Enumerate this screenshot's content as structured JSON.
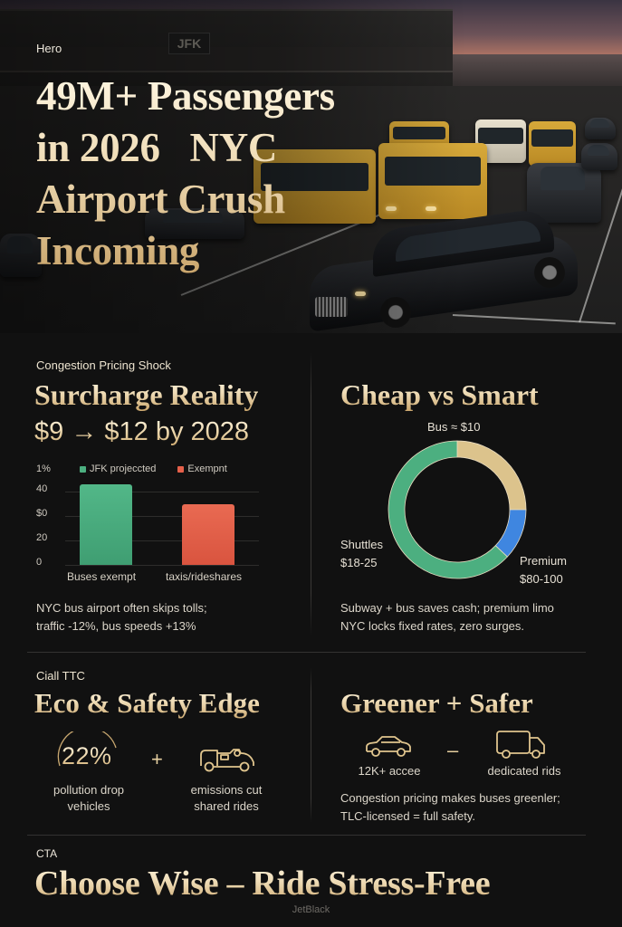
{
  "hero": {
    "label": "Hero",
    "title_lines": [
      "49M+ Passengers",
      "in 2026   NYC",
      "Airport Crush",
      "Incoming"
    ],
    "sign_text": "JFK",
    "image_alt": "Evening traffic at JFK airport with yellow buses and a black limousine"
  },
  "congestion": {
    "kicker": "Congestion Pricing Shock",
    "title": "Surcharge Reality",
    "subtitle": "$9 → $12 by 2028",
    "body_lines": [
      "NYC bus airport often skips tolls;",
      "traffic -12%, bus speeds +13%"
    ]
  },
  "comparison": {
    "title": "Cheap vs Smart",
    "body_lines": [
      "Subway + bus saves cash; premium limo",
      "NYC locks fixed rates, zero surges."
    ]
  },
  "eco": {
    "kicker": "Ciall TTC",
    "title": "Eco & Safety Edge",
    "stat_value": "22%",
    "stat_caption_lines": [
      "pollution drop",
      "vehicles"
    ],
    "operator": "+",
    "icon_caption_lines": [
      "emissions cut",
      "shared rides"
    ]
  },
  "greener": {
    "title": "Greener + Safer",
    "car_caption": "12K+ accee",
    "operator": "–",
    "truck_caption": "dedicated rids",
    "body_lines": [
      "Congestion pricing makes buses greenler;",
      "TLC-licensed = full safety."
    ]
  },
  "cta": {
    "label": "CTA",
    "title": "Choose Wise – Ride Stress-Free",
    "brand": "JetBlack"
  },
  "icons": {
    "stat_arc": "arc-gauge-icon",
    "truck_line": "delivery-truck-icon",
    "car_line": "car-icon",
    "van_line": "box-truck-icon"
  },
  "colors": {
    "background": "#111111",
    "gold_light": "#fff6e2",
    "gold_dark": "#c9a46a",
    "green": "#4caf80",
    "red": "#e5604a",
    "blue": "#3f86e0",
    "beige": "#dcc38c",
    "divider": "#333231"
  },
  "chart_data": [
    {
      "type": "bar",
      "title": "",
      "ylabel": "1%",
      "xlabel": "",
      "categories": [
        "Buses exempt",
        "taxis/rideshares"
      ],
      "legend": [
        "JFK projeccted",
        "Exempnt"
      ],
      "series": [
        {
          "name": "JFK projeccted",
          "color": "#4caf80",
          "values": [
            44,
            null
          ]
        },
        {
          "name": "Exempnt",
          "color": "#e5604a",
          "values": [
            null,
            33
          ]
        }
      ],
      "values": [
        44,
        33
      ],
      "yticks": [
        "0",
        "20",
        "$0",
        "40"
      ],
      "ylim": [
        0,
        50
      ],
      "grid": true,
      "legend_position": "top"
    },
    {
      "type": "pie",
      "style": "donut",
      "title": "Cheap vs Smart",
      "slices": [
        {
          "label": "Bus ≈ $10",
          "value": 25,
          "color": "#dcc38c"
        },
        {
          "label": "Premium $80-100",
          "value": 12,
          "color": "#3f86e0"
        },
        {
          "label": "Shuttles $18-25",
          "value": 63,
          "color": "#4caf80"
        }
      ],
      "labels_display": {
        "top": "Bus ≈ $10",
        "left_lines": [
          "Shuttles",
          "$18-25"
        ],
        "right_lines": [
          "Premium",
          "$80-100"
        ]
      }
    }
  ]
}
